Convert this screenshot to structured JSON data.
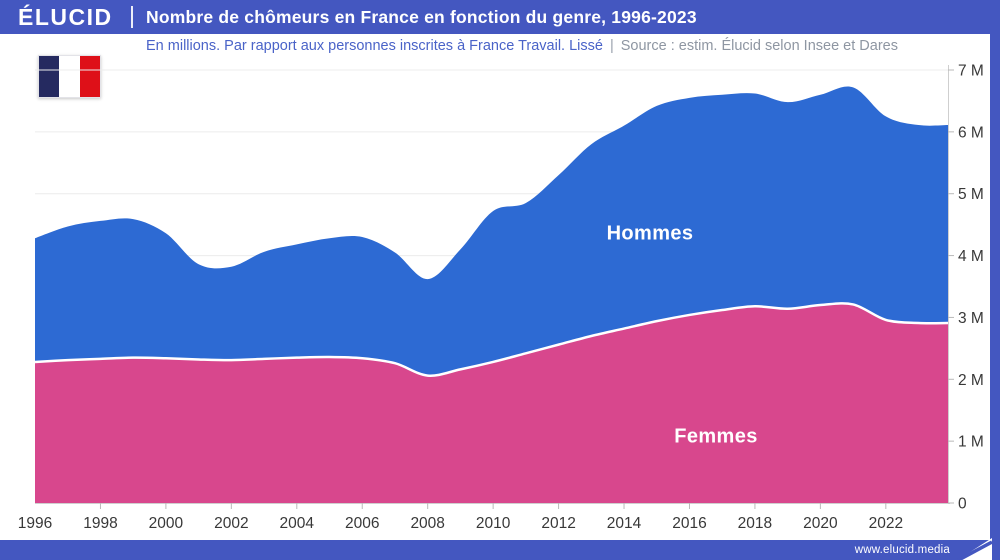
{
  "header": {
    "brand": "ÉLUCID",
    "title": "Nombre de chômeurs en France en fonction du genre, 1996-2023"
  },
  "subtitle": {
    "description": "En millions. Par rapport aux personnes inscrites à France Travail. Lissé",
    "separator": "|",
    "source": "Source : estim. Élucid selon Insee et Dares"
  },
  "footer": {
    "url": "www.elucid.media"
  },
  "colors": {
    "band_blue": "#4457c0",
    "hommes_blue": "#2d6ad3",
    "femmes_pink": "#d8478d",
    "subtitle_blue": "#4a63c8",
    "subtitle_gray": "#8e96a2",
    "axis_text": "#383838",
    "grid": "#ececec",
    "axis_line": "#cfcfcf",
    "tick": "#b9b9b9",
    "separator_stroke": "#ffffff"
  },
  "chart_data": {
    "type": "area",
    "stacked": true,
    "unit": "millions",
    "title": "Nombre de chômeurs en France en fonction du genre, 1996-2023",
    "x": [
      1996,
      1997,
      1998,
      1999,
      2000,
      2001,
      2002,
      2003,
      2004,
      2005,
      2006,
      2007,
      2008,
      2009,
      2010,
      2011,
      2012,
      2013,
      2014,
      2015,
      2016,
      2017,
      2018,
      2019,
      2020,
      2021,
      2022,
      2023
    ],
    "x_end": 2023.9,
    "series": [
      {
        "name": "Femmes",
        "color": "#d8478d",
        "values": [
          2.28,
          2.31,
          2.33,
          2.35,
          2.34,
          2.32,
          2.31,
          2.33,
          2.35,
          2.36,
          2.34,
          2.26,
          2.06,
          2.16,
          2.28,
          2.42,
          2.56,
          2.7,
          2.82,
          2.94,
          3.04,
          3.12,
          3.18,
          3.14,
          3.2,
          3.21,
          2.96,
          2.91
        ]
      },
      {
        "name": "Hommes",
        "color": "#2d6ad3",
        "values": [
          2.0,
          2.16,
          2.23,
          2.24,
          2.02,
          1.54,
          1.51,
          1.73,
          1.83,
          1.92,
          1.96,
          1.79,
          1.56,
          1.94,
          2.44,
          2.43,
          2.74,
          3.1,
          3.28,
          3.48,
          3.51,
          3.48,
          3.44,
          3.34,
          3.4,
          3.51,
          3.29,
          3.2
        ]
      }
    ],
    "ylim": [
      0,
      7
    ],
    "yticks": [
      "0",
      "1 M",
      "2 M",
      "3 M",
      "4 M",
      "5 M",
      "6 M",
      "7 M"
    ],
    "xticks": [
      1996,
      1998,
      2000,
      2002,
      2004,
      2006,
      2008,
      2010,
      2012,
      2014,
      2016,
      2018,
      2020,
      2022
    ],
    "grid": "horizontal",
    "legend": "inline-labels"
  }
}
